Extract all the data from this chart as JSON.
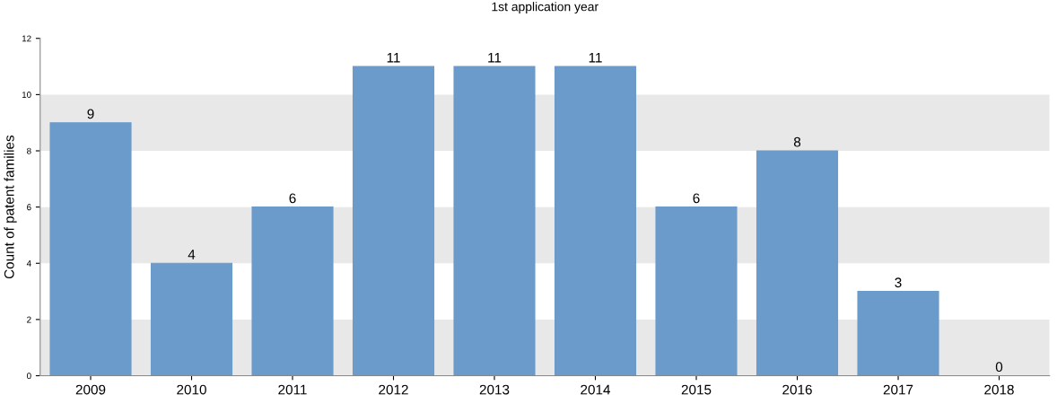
{
  "chart_data": {
    "type": "bar",
    "title": "1st application year",
    "ylabel": "Count of patent families",
    "categories": [
      "2009",
      "2010",
      "2011",
      "2012",
      "2013",
      "2014",
      "2015",
      "2016",
      "2017",
      "2018"
    ],
    "values": [
      9,
      4,
      6,
      11,
      11,
      11,
      6,
      8,
      3,
      0
    ],
    "color": "#6b9bcb",
    "ylim": [
      0,
      12
    ],
    "yticks": [
      0,
      2,
      4,
      6,
      8,
      10,
      12
    ],
    "data_labels": true,
    "grid": false,
    "legend": false,
    "bands": [
      {
        "axis": "y",
        "from": 0,
        "to": 2,
        "color": "#e8e8e8"
      },
      {
        "axis": "y",
        "from": 4,
        "to": 6,
        "color": "#e8e8e8"
      },
      {
        "axis": "y",
        "from": 8,
        "to": 10,
        "color": "#e8e8e8"
      }
    ]
  }
}
